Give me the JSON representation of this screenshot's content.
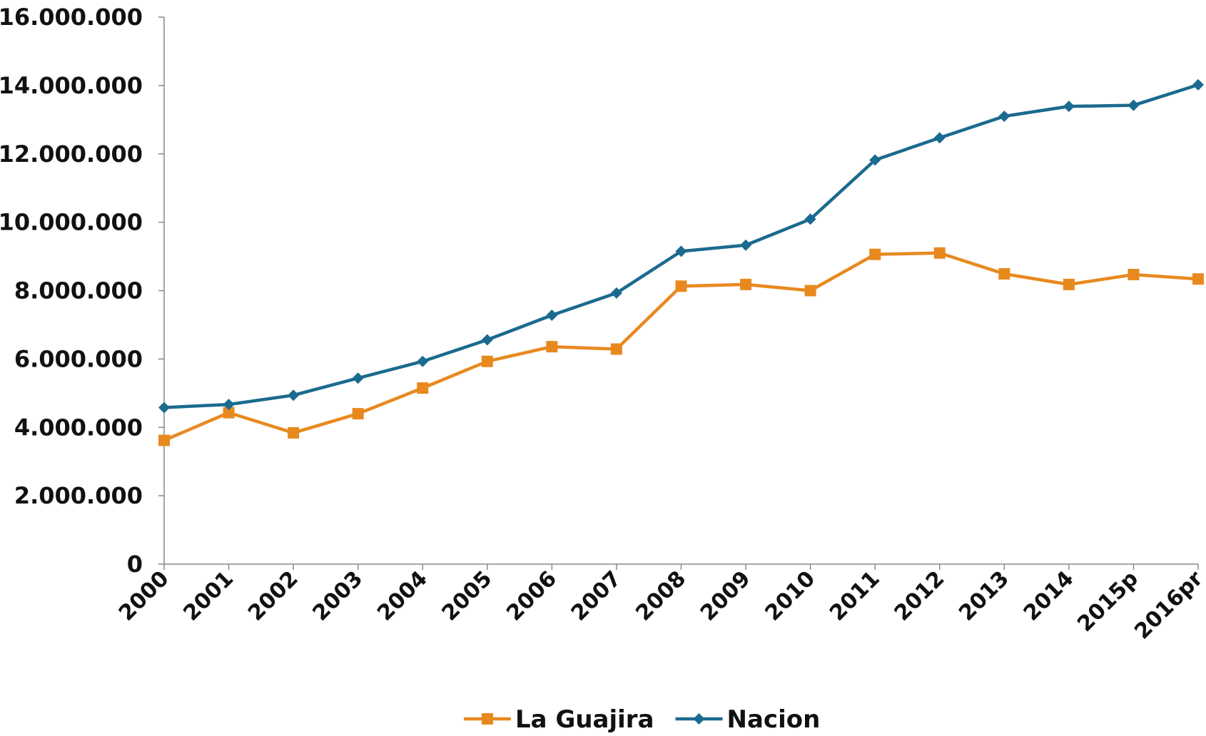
{
  "chart_data": {
    "type": "line",
    "categories": [
      "2000",
      "2001",
      "2002",
      "2003",
      "2004",
      "2005",
      "2006",
      "2007",
      "2008",
      "2009",
      "2010",
      "2011",
      "2012",
      "2013",
      "2014",
      "2015p",
      "2016pr"
    ],
    "series": [
      {
        "name": "La Guajira",
        "color": "#e8891f",
        "marker": "square",
        "values": [
          3620000,
          4430000,
          3840000,
          4400000,
          5150000,
          5930000,
          6360000,
          6290000,
          8130000,
          8180000,
          8000000,
          9060000,
          9100000,
          8490000,
          8180000,
          8470000,
          8340000
        ]
      },
      {
        "name": "Nacion",
        "color": "#1b6a8f",
        "marker": "diamond",
        "values": [
          4580000,
          4670000,
          4940000,
          5440000,
          5930000,
          6560000,
          7280000,
          7930000,
          9150000,
          9330000,
          10090000,
          11820000,
          12470000,
          13100000,
          13390000,
          13420000,
          14020000
        ]
      }
    ],
    "ylim": [
      0,
      16000000
    ],
    "yticks": [
      0,
      {
        "value": 2000000,
        "label": "2.000.000"
      },
      {
        "value": 4000000,
        "label": "4.000.000"
      },
      {
        "value": 6000000,
        "label": "6.000.000"
      },
      {
        "value": 8000000,
        "label": "8.000.000"
      },
      {
        "value": 10000000,
        "label": "10.000.000"
      },
      {
        "value": 12000000,
        "label": "12.000.000"
      },
      {
        "value": 14000000,
        "label": "14.000.000"
      },
      {
        "value": 16000000,
        "label": "16.000.000"
      }
    ],
    "legend": "bottom"
  }
}
